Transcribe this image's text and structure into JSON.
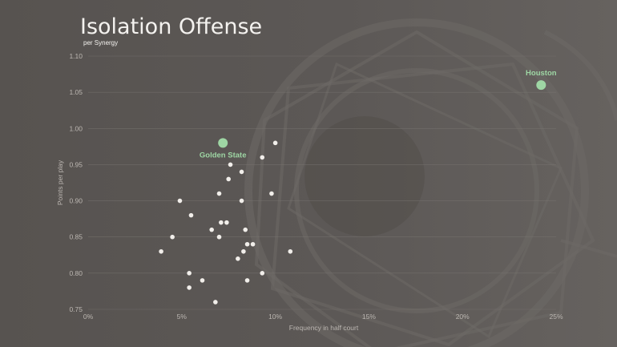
{
  "chart_data": {
    "type": "scatter",
    "title": "Isolation Offense",
    "subtitle": "per Synergy",
    "xlabel": "Frequency in half court",
    "ylabel": "Points per play",
    "xlim": [
      0,
      25
    ],
    "ylim": [
      0.75,
      1.1
    ],
    "x_ticks": [
      "0%",
      "5%",
      "10%",
      "15%",
      "20%",
      "25%"
    ],
    "y_ticks": [
      "0.75",
      "0.80",
      "0.85",
      "0.90",
      "0.95",
      "1.00",
      "1.05",
      "1.10"
    ],
    "grid": true,
    "highlight_color": "#9ed6a4",
    "point_color": "#f1eeea",
    "highlighted": [
      {
        "label": "Houston",
        "x": 24.2,
        "y": 1.06
      },
      {
        "label": "Golden State",
        "x": 7.2,
        "y": 0.98
      }
    ],
    "points": [
      {
        "x": 10.0,
        "y": 0.98
      },
      {
        "x": 9.3,
        "y": 0.96
      },
      {
        "x": 7.6,
        "y": 0.95
      },
      {
        "x": 8.2,
        "y": 0.94
      },
      {
        "x": 7.5,
        "y": 0.93
      },
      {
        "x": 7.0,
        "y": 0.91
      },
      {
        "x": 9.8,
        "y": 0.91
      },
      {
        "x": 4.9,
        "y": 0.9
      },
      {
        "x": 8.2,
        "y": 0.9
      },
      {
        "x": 5.5,
        "y": 0.88
      },
      {
        "x": 7.1,
        "y": 0.87
      },
      {
        "x": 7.4,
        "y": 0.87
      },
      {
        "x": 6.6,
        "y": 0.86
      },
      {
        "x": 8.4,
        "y": 0.86
      },
      {
        "x": 4.5,
        "y": 0.85
      },
      {
        "x": 7.0,
        "y": 0.85
      },
      {
        "x": 8.5,
        "y": 0.84
      },
      {
        "x": 8.8,
        "y": 0.84
      },
      {
        "x": 3.9,
        "y": 0.83
      },
      {
        "x": 8.3,
        "y": 0.83
      },
      {
        "x": 10.8,
        "y": 0.83
      },
      {
        "x": 8.0,
        "y": 0.82
      },
      {
        "x": 5.4,
        "y": 0.8
      },
      {
        "x": 9.3,
        "y": 0.8
      },
      {
        "x": 6.1,
        "y": 0.79
      },
      {
        "x": 8.5,
        "y": 0.79
      },
      {
        "x": 5.4,
        "y": 0.78
      },
      {
        "x": 6.8,
        "y": 0.76
      }
    ]
  }
}
